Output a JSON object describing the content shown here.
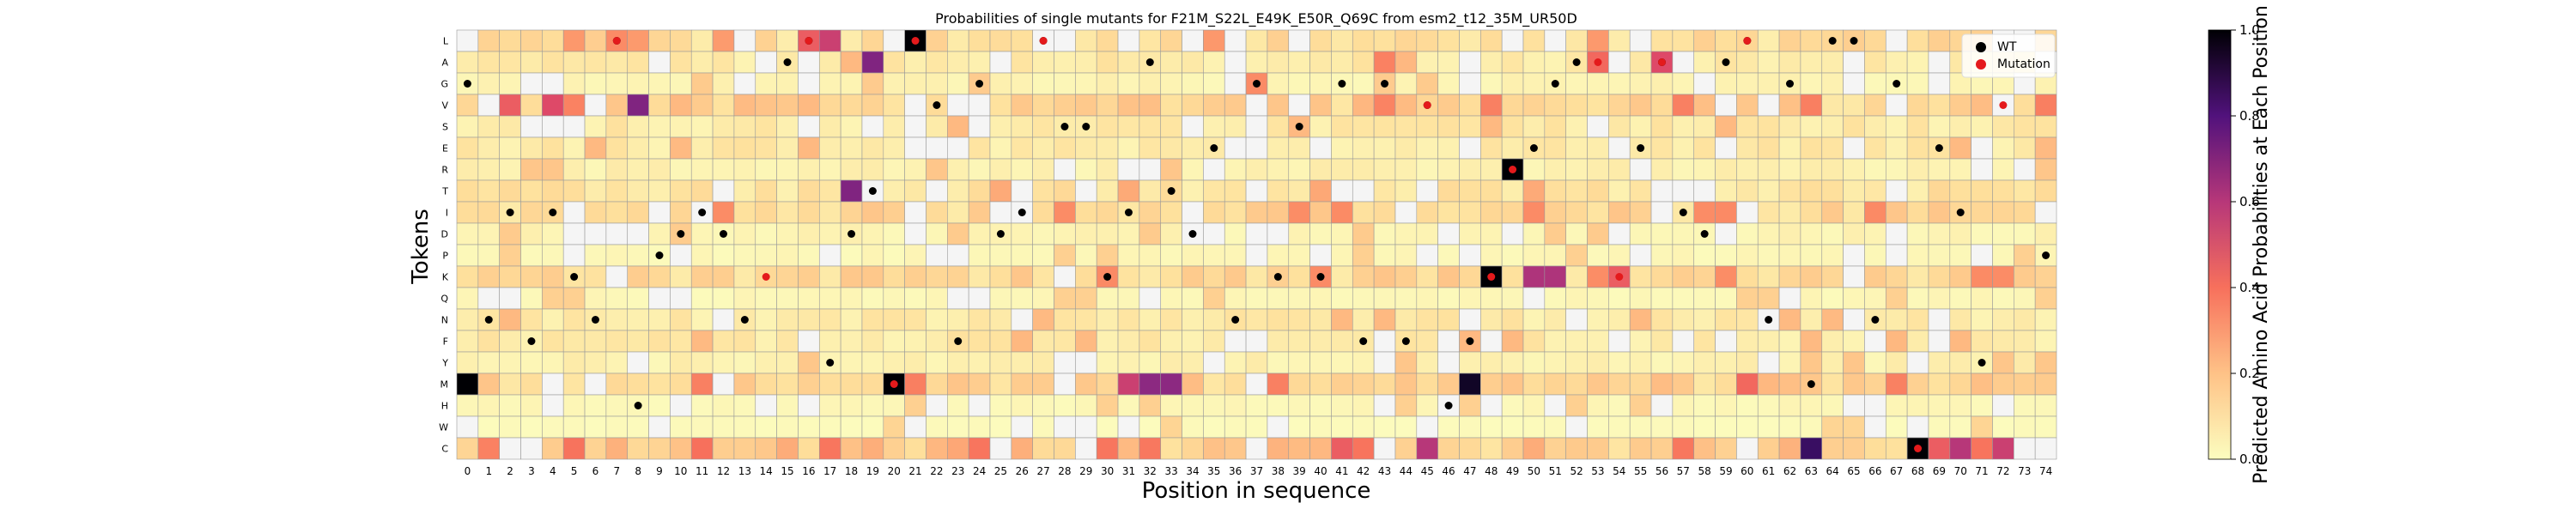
{
  "chart_data": {
    "type": "heatmap",
    "title": "Probabilities of single mutants for F21M_S22L_E49K_E50R_Q69C from esm2_t12_35M_UR50D",
    "xlabel": "Position in sequence",
    "ylabel": "Tokens",
    "colorbar_label": "Predicted Amino Acid Probabilities at Each Position",
    "colorbar_ticks": [
      "0.0",
      "0.2",
      "0.4",
      "0.6",
      "0.8",
      "1.0"
    ],
    "colorbar_range": [
      0,
      1
    ],
    "colormap": "magma_r",
    "tokens": [
      "L",
      "A",
      "G",
      "V",
      "S",
      "E",
      "R",
      "T",
      "I",
      "D",
      "P",
      "K",
      "Q",
      "N",
      "F",
      "Y",
      "M",
      "H",
      "W",
      "C"
    ],
    "positions": [
      "0",
      "1",
      "2",
      "3",
      "4",
      "5",
      "6",
      "7",
      "8",
      "9",
      "10",
      "11",
      "12",
      "13",
      "14",
      "15",
      "16",
      "17",
      "18",
      "19",
      "20",
      "21",
      "22",
      "23",
      "24",
      "25",
      "26",
      "27",
      "28",
      "29",
      "30",
      "31",
      "32",
      "33",
      "34",
      "35",
      "36",
      "37",
      "38",
      "39",
      "40",
      "41",
      "42",
      "43",
      "44",
      "45",
      "46",
      "47",
      "48",
      "49",
      "50",
      "51",
      "52",
      "53",
      "54",
      "55",
      "56",
      "57",
      "58",
      "59",
      "60",
      "61",
      "62",
      "63",
      "64",
      "65",
      "66",
      "67",
      "68",
      "69",
      "70",
      "71",
      "72",
      "73",
      "74"
    ],
    "legend": {
      "position": "top-right",
      "items": [
        {
          "label": "WT",
          "color": "#000000"
        },
        {
          "label": "Mutation",
          "color": "#e41a1c"
        }
      ]
    },
    "wt_markers": [
      {
        "x": 0,
        "token": "G"
      },
      {
        "x": 1,
        "token": "N"
      },
      {
        "x": 2,
        "token": "I"
      },
      {
        "x": 3,
        "token": "F"
      },
      {
        "x": 4,
        "token": "I"
      },
      {
        "x": 5,
        "token": "K"
      },
      {
        "x": 6,
        "token": "N"
      },
      {
        "x": 7,
        "token": "L"
      },
      {
        "x": 8,
        "token": "H"
      },
      {
        "x": 9,
        "token": "P"
      },
      {
        "x": 10,
        "token": "D"
      },
      {
        "x": 11,
        "token": "I"
      },
      {
        "x": 12,
        "token": "D"
      },
      {
        "x": 13,
        "token": "N"
      },
      {
        "x": 15,
        "token": "A"
      },
      {
        "x": 16,
        "token": "L"
      },
      {
        "x": 17,
        "token": "Y"
      },
      {
        "x": 18,
        "token": "D"
      },
      {
        "x": 19,
        "token": "T"
      },
      {
        "x": 22,
        "token": "V"
      },
      {
        "x": 23,
        "token": "F"
      },
      {
        "x": 24,
        "token": "G"
      },
      {
        "x": 25,
        "token": "D"
      },
      {
        "x": 26,
        "token": "I"
      },
      {
        "x": 27,
        "token": "L"
      },
      {
        "x": 28,
        "token": "S"
      },
      {
        "x": 29,
        "token": "S"
      },
      {
        "x": 30,
        "token": "K"
      },
      {
        "x": 31,
        "token": "I"
      },
      {
        "x": 32,
        "token": "A"
      },
      {
        "x": 33,
        "token": "T"
      },
      {
        "x": 34,
        "token": "D"
      },
      {
        "x": 35,
        "token": "E"
      },
      {
        "x": 36,
        "token": "N"
      },
      {
        "x": 37,
        "token": "G"
      },
      {
        "x": 38,
        "token": "K"
      },
      {
        "x": 39,
        "token": "S"
      },
      {
        "x": 40,
        "token": "K"
      },
      {
        "x": 41,
        "token": "G"
      },
      {
        "x": 42,
        "token": "F"
      },
      {
        "x": 43,
        "token": "G"
      },
      {
        "x": 44,
        "token": "F"
      },
      {
        "x": 45,
        "token": "V"
      },
      {
        "x": 46,
        "token": "H"
      },
      {
        "x": 47,
        "token": "F"
      },
      {
        "x": 50,
        "token": "E"
      },
      {
        "x": 51,
        "token": "G"
      },
      {
        "x": 52,
        "token": "A"
      },
      {
        "x": 55,
        "token": "E"
      },
      {
        "x": 56,
        "token": "A"
      },
      {
        "x": 57,
        "token": "I"
      },
      {
        "x": 58,
        "token": "D"
      },
      {
        "x": 59,
        "token": "A"
      },
      {
        "x": 60,
        "token": "L"
      },
      {
        "x": 61,
        "token": "N"
      },
      {
        "x": 62,
        "token": "G"
      },
      {
        "x": 63,
        "token": "M"
      },
      {
        "x": 64,
        "token": "L"
      },
      {
        "x": 65,
        "token": "L"
      },
      {
        "x": 66,
        "token": "N"
      },
      {
        "x": 67,
        "token": "G"
      },
      {
        "x": 69,
        "token": "E"
      },
      {
        "x": 70,
        "token": "I"
      },
      {
        "x": 71,
        "token": "Y"
      },
      {
        "x": 74,
        "token": "P"
      }
    ],
    "mutation_markers": [
      {
        "x": 7,
        "token": "L"
      },
      {
        "x": 14,
        "token": "K"
      },
      {
        "x": 16,
        "token": "L"
      },
      {
        "x": 20,
        "token": "M"
      },
      {
        "x": 21,
        "token": "L"
      },
      {
        "x": 27,
        "token": "L"
      },
      {
        "x": 45,
        "token": "V"
      },
      {
        "x": 48,
        "token": "K"
      },
      {
        "x": 49,
        "token": "R"
      },
      {
        "x": 53,
        "token": "A"
      },
      {
        "x": 54,
        "token": "K"
      },
      {
        "x": 56,
        "token": "A"
      },
      {
        "x": 60,
        "token": "L"
      },
      {
        "x": 68,
        "token": "C"
      },
      {
        "x": 72,
        "token": "V"
      }
    ],
    "high_cells": [
      {
        "x": 0,
        "token": "M",
        "value": 1.0
      },
      {
        "x": 20,
        "token": "M",
        "value": 1.0
      },
      {
        "x": 21,
        "token": "L",
        "value": 1.0
      },
      {
        "x": 48,
        "token": "K",
        "value": 1.0
      },
      {
        "x": 49,
        "token": "R",
        "value": 1.0
      },
      {
        "x": 68,
        "token": "C",
        "value": 1.0
      },
      {
        "x": 47,
        "token": "M",
        "value": 0.95
      },
      {
        "x": 63,
        "token": "C",
        "value": 0.85
      },
      {
        "x": 18,
        "token": "T",
        "value": 0.72
      },
      {
        "x": 19,
        "token": "A",
        "value": 0.72
      },
      {
        "x": 8,
        "token": "V",
        "value": 0.72
      },
      {
        "x": 32,
        "token": "M",
        "value": 0.7
      },
      {
        "x": 33,
        "token": "M",
        "value": 0.7
      },
      {
        "x": 50,
        "token": "K",
        "value": 0.62
      },
      {
        "x": 51,
        "token": "K",
        "value": 0.62
      },
      {
        "x": 17,
        "token": "L",
        "value": 0.55
      },
      {
        "x": 16,
        "token": "L",
        "value": 0.45
      },
      {
        "x": 31,
        "token": "M",
        "value": 0.55
      },
      {
        "x": 45,
        "token": "C",
        "value": 0.6
      },
      {
        "x": 70,
        "token": "C",
        "value": 0.6
      },
      {
        "x": 72,
        "token": "C",
        "value": 0.55
      },
      {
        "x": 56,
        "token": "A",
        "value": 0.5
      },
      {
        "x": 54,
        "token": "K",
        "value": 0.45
      },
      {
        "x": 53,
        "token": "A",
        "value": 0.42
      },
      {
        "x": 2,
        "token": "V",
        "value": 0.45
      },
      {
        "x": 4,
        "token": "V",
        "value": 0.5
      },
      {
        "x": 69,
        "token": "C",
        "value": 0.45
      },
      {
        "x": 41,
        "token": "C",
        "value": 0.45
      },
      {
        "x": 11,
        "token": "C",
        "value": 0.4
      },
      {
        "x": 60,
        "token": "M",
        "value": 0.42
      },
      {
        "x": 57,
        "token": "C",
        "value": 0.38
      },
      {
        "x": 1,
        "token": "C",
        "value": 0.35
      },
      {
        "x": 43,
        "token": "A",
        "value": 0.35
      },
      {
        "x": 7,
        "token": "L",
        "value": 0.32
      },
      {
        "x": 37,
        "token": "G",
        "value": 0.32
      }
    ]
  }
}
